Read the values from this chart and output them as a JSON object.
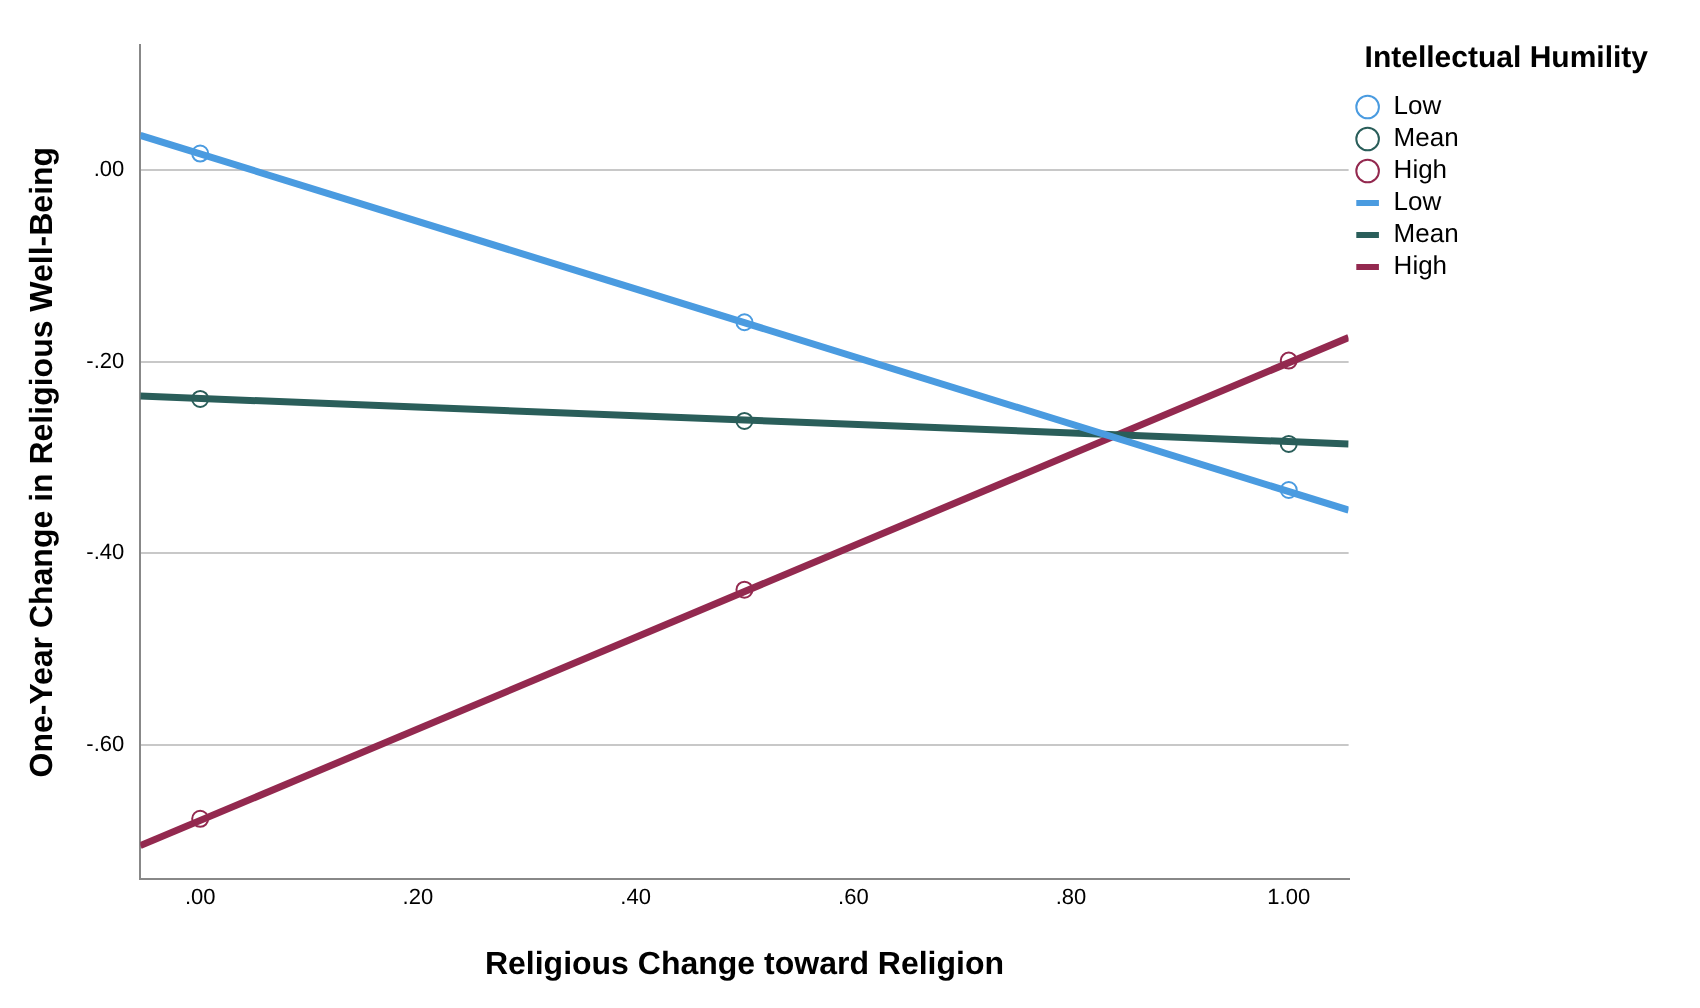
{
  "chart_data": {
    "type": "line",
    "xlabel": "Religious Change toward Religion",
    "ylabel": "One-Year Change in Religious Well-Being",
    "legend_title": "Intellectual Humility",
    "legend": "top right",
    "grid": "y",
    "xlim": [
      -0.055,
      1.055
    ],
    "ylim": [
      -0.74,
      0.13
    ],
    "xticks": [
      {
        "value": 0,
        "label": ".00"
      },
      {
        "value": 0.2,
        "label": ".20"
      },
      {
        "value": 0.4,
        "label": ".40"
      },
      {
        "value": 0.6,
        "label": ".60"
      },
      {
        "value": 0.8,
        "label": ".80"
      },
      {
        "value": 1,
        "label": "1.00"
      }
    ],
    "yticks": [
      {
        "value": 0,
        "label": ".00"
      },
      {
        "value": -0.2,
        "label": "-.20"
      },
      {
        "value": -0.4,
        "label": "-.40"
      },
      {
        "value": -0.6,
        "label": "-.60"
      }
    ],
    "series": [
      {
        "name": "Low",
        "type": "scatter",
        "marker": "circle",
        "color": "#4a9be0",
        "x": [
          0,
          0.5,
          1
        ],
        "values": [
          0.017,
          -0.159,
          -0.334
        ]
      },
      {
        "name": "Mean",
        "type": "scatter",
        "marker": "circle",
        "color": "#2a5e5a",
        "x": [
          0,
          0.5,
          1
        ],
        "values": [
          -0.239,
          -0.262,
          -0.286
        ]
      },
      {
        "name": "High",
        "type": "scatter",
        "marker": "circle",
        "color": "#93294f",
        "x": [
          0,
          0.5,
          1
        ],
        "values": [
          -0.677,
          -0.438,
          -0.199
        ]
      },
      {
        "name": "Low",
        "marker": "none",
        "line_style": "solid",
        "color": "#4a9be0",
        "x": [
          -0.055,
          1.055
        ],
        "values": [
          0.036,
          -0.355
        ]
      },
      {
        "name": "Mean",
        "marker": "none",
        "line_style": "solid",
        "color": "#2a5e5a",
        "x": [
          -0.055,
          1.055
        ],
        "values": [
          -0.236,
          -0.286
        ]
      },
      {
        "name": "High",
        "marker": "none",
        "line_style": "solid",
        "color": "#93294f",
        "x": [
          -0.055,
          1.055
        ],
        "values": [
          -0.705,
          -0.175
        ]
      }
    ]
  }
}
